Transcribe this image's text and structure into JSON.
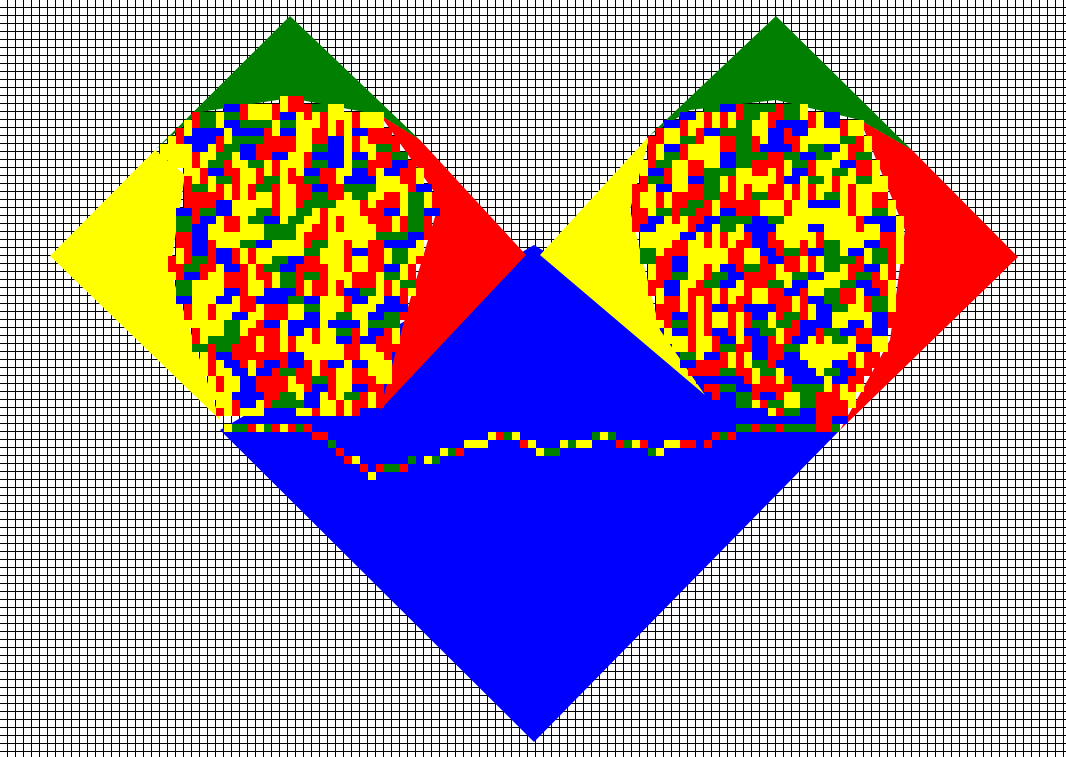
{
  "colors": {
    "background": "#ffffff",
    "grid_line": "#000000",
    "north": "#007f00",
    "west": "#ffff00",
    "east": "#ff0000",
    "south": "#0000ff"
  },
  "tiling": {
    "description_visible_text": "",
    "regions": [
      {
        "name": "left-diamond-top",
        "color_key": "north"
      },
      {
        "name": "left-diamond-left",
        "color_key": "west"
      },
      {
        "name": "left-diamond-right",
        "color_key": "east"
      },
      {
        "name": "right-diamond-top",
        "color_key": "north"
      },
      {
        "name": "right-diamond-left",
        "color_key": "west"
      },
      {
        "name": "right-diamond-right",
        "color_key": "east"
      },
      {
        "name": "bottom-diamond",
        "color_key": "south"
      },
      {
        "name": "left-diamond-interior",
        "color_key": "mixed"
      },
      {
        "name": "right-diamond-interior",
        "color_key": "mixed"
      }
    ]
  }
}
